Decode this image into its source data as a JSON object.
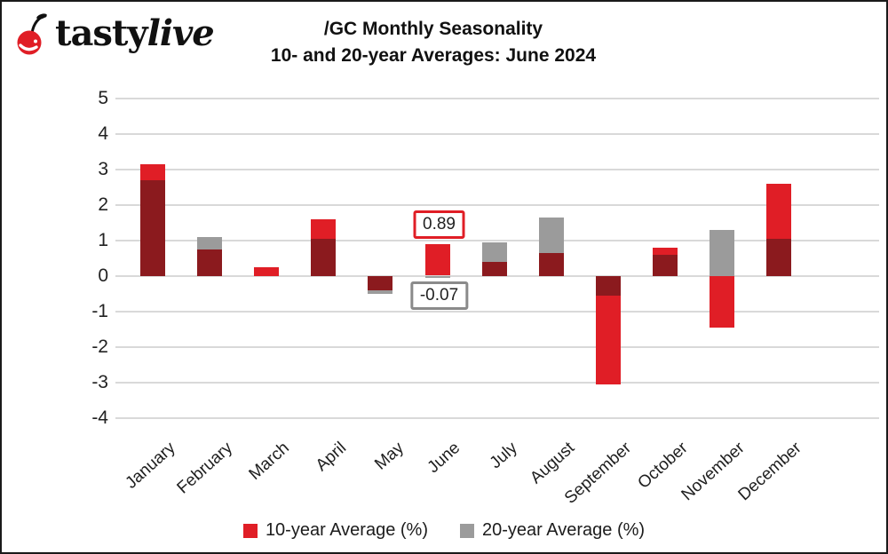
{
  "logo": {
    "tasty": "tasty",
    "live": "live"
  },
  "title": {
    "line1": "/GC Monthly Seasonality",
    "line2": "10- and 20-year Averages: June 2024"
  },
  "colors": {
    "red": "#e01e26",
    "gray": "#9b9b9b",
    "overlap": "#8b1a1e",
    "grid": "#d9d9d9",
    "callout_red_border": "#e01e26",
    "callout_gray_border": "#8a8a8a"
  },
  "legend": {
    "items": [
      {
        "label": "10-year Average (%)",
        "color": "#e01e26"
      },
      {
        "label": "20-year Average (%)",
        "color": "#9b9b9b"
      }
    ]
  },
  "chart_data": {
    "type": "bar",
    "title": "/GC Monthly Seasonality 10- and 20-year Averages: June 2024",
    "categories": [
      "January",
      "February",
      "March",
      "April",
      "May",
      "June",
      "July",
      "August",
      "September",
      "October",
      "November",
      "December"
    ],
    "series": [
      {
        "name": "10-year Average (%)",
        "color": "#e01e26",
        "values": [
          3.15,
          0.75,
          0.25,
          1.6,
          -0.4,
          0.89,
          0.4,
          0.65,
          -3.05,
          0.8,
          -1.45,
          2.6
        ]
      },
      {
        "name": "20-year Average (%)",
        "color": "#9b9b9b",
        "values": [
          2.7,
          1.1,
          0.0,
          1.05,
          -0.5,
          -0.07,
          0.95,
          1.65,
          -0.55,
          0.6,
          1.3,
          1.05
        ]
      }
    ],
    "overlap_color": "#8b1a1e",
    "ylim": [
      -4,
      5
    ],
    "yticks": [
      5,
      4,
      3,
      2,
      1,
      0,
      -1,
      -2,
      -3,
      -4
    ],
    "grid": true,
    "legend_position": "bottom",
    "annotations": [
      {
        "text": "0.89",
        "month_index": 5,
        "value": 0.89,
        "position": "above",
        "border_color": "#e01e26"
      },
      {
        "text": "-0.07",
        "month_index": 5,
        "value": -0.07,
        "position": "below",
        "border_color": "#8a8a8a"
      }
    ]
  }
}
